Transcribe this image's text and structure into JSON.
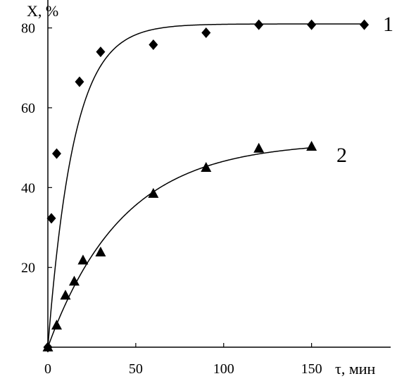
{
  "chart_data": {
    "type": "scatter",
    "ylabel": "X, %",
    "xlabel": "τ, мин",
    "xlim": [
      0,
      195
    ],
    "ylim": [
      0,
      87
    ],
    "x_ticks": [
      0,
      50,
      100,
      150
    ],
    "y_ticks": [
      20,
      40,
      60,
      80
    ],
    "grid": false,
    "legend": "none",
    "series": [
      {
        "name": "1",
        "marker": "diamond",
        "color": "#000000",
        "points": [
          [
            0,
            0
          ],
          [
            2,
            32.3
          ],
          [
            5,
            48.5
          ],
          [
            18,
            66.5
          ],
          [
            30,
            74
          ],
          [
            60,
            75.8
          ],
          [
            90,
            78.8
          ],
          [
            120,
            80.8
          ],
          [
            150,
            80.8
          ],
          [
            180,
            80.8
          ]
        ],
        "fit": {
          "model": "exponential",
          "plateau": 81,
          "rate": 0.068
        },
        "fit_range": [
          0,
          180
        ]
      },
      {
        "name": "2",
        "marker": "triangle",
        "color": "#000000",
        "points": [
          [
            0,
            0
          ],
          [
            5,
            5.5
          ],
          [
            10,
            13
          ],
          [
            15,
            16.5
          ],
          [
            20,
            21.8
          ],
          [
            30,
            23.8
          ],
          [
            60,
            38.5
          ],
          [
            90,
            45
          ],
          [
            120,
            49.8
          ],
          [
            150,
            50.3
          ]
        ],
        "fit": {
          "model": "exponential",
          "plateau": 51.5,
          "rate": 0.0235
        },
        "fit_range": [
          0,
          150
        ]
      }
    ]
  }
}
